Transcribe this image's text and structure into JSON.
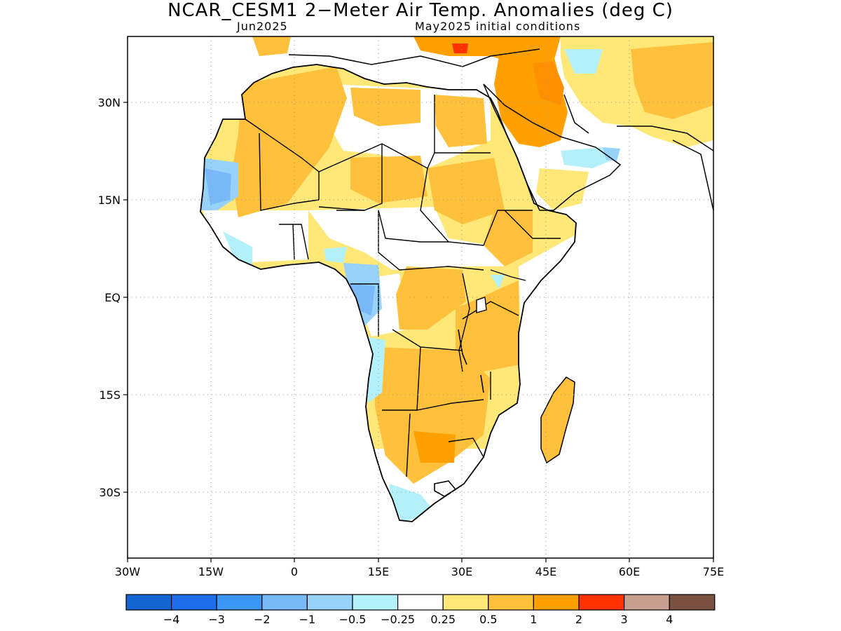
{
  "title": "NCAR_CESM1 2−Meter Air Temp. Anomalies (deg C)",
  "subtitle_left": "Jun2025",
  "subtitle_right": "May2025 initial conditions",
  "lat_labels": [
    "30N",
    "15N",
    "EQ",
    "15S",
    "30S"
  ],
  "lon_labels": [
    "30W",
    "15W",
    "0",
    "15E",
    "30E",
    "45E",
    "60E",
    "75E"
  ],
  "colorbar": {
    "colors": [
      "#1464d2",
      "#1e6eeb",
      "#3c96f5",
      "#78b9fa",
      "#96d2fa",
      "#b4f0fa",
      "#ffffff",
      "#ffe878",
      "#ffc03c",
      "#ffa000",
      "#ff3200",
      "#c8a090",
      "#7a5040"
    ],
    "labels": [
      "−4",
      "−3",
      "−2",
      "−1",
      "−0.5",
      "−0.25",
      "0.25",
      "0.5",
      "1",
      "2",
      "3",
      "4"
    ]
  }
}
